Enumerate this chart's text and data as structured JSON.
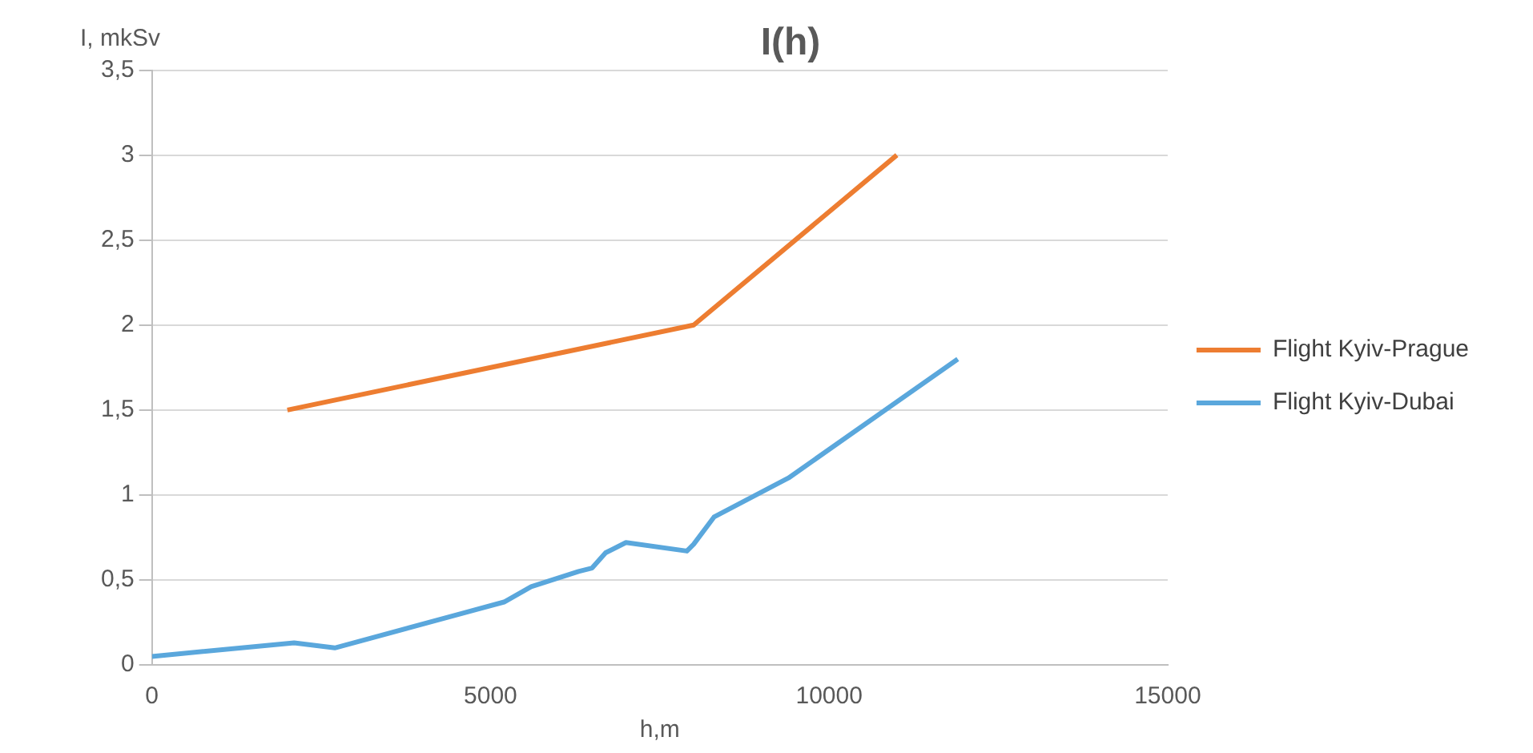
{
  "chart_data": {
    "type": "line",
    "title": "I(h)",
    "xlabel": "h,m",
    "ylabel": "I, mkSv",
    "xlim": [
      0,
      15000
    ],
    "xticks": [
      0,
      5000,
      10000,
      15000
    ],
    "ylim": [
      0,
      3.5
    ],
    "yticks": [
      0,
      {
        "value": 0.5,
        "label": "0,5"
      },
      1,
      {
        "value": 1.5,
        "label": "1,5"
      },
      2,
      {
        "value": 2.5,
        "label": "2,5"
      },
      3,
      {
        "value": 3.5,
        "label": "3,5"
      }
    ],
    "grid": "y",
    "legend": "right",
    "marker": "none",
    "series": [
      {
        "name": "Flight Kyiv-Prague",
        "color": "#ed7d31",
        "x": [
          2000,
          8000,
          11000
        ],
        "values": [
          1.5,
          2,
          3
        ]
      },
      {
        "name": "Flight Kyiv-Dubai",
        "color": "#5aa7dc",
        "x": [
          0,
          2100,
          2700,
          5200,
          5600,
          6300,
          6500,
          6700,
          7000,
          7900,
          8000,
          8300,
          9400,
          11900
        ],
        "values": [
          0.05,
          0.13,
          0.1,
          0.37,
          0.46,
          0.55,
          0.57,
          0.66,
          0.72,
          0.67,
          0.71,
          0.87,
          1.1,
          1.8
        ]
      }
    ]
  }
}
